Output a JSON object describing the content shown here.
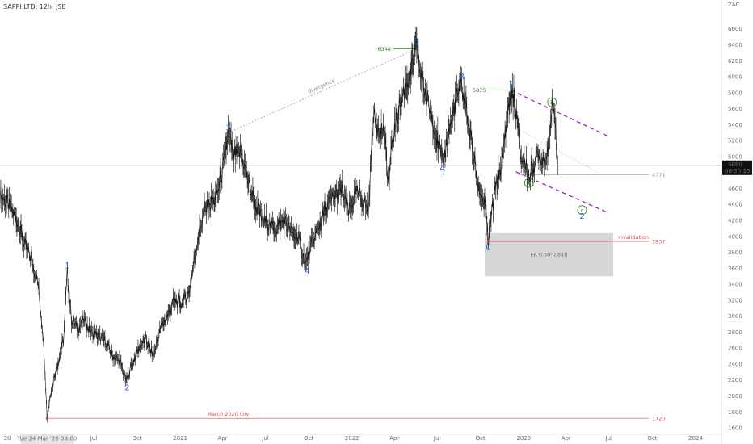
{
  "header": {
    "title": "SAPPI LTD, 12h, JSE"
  },
  "chart_data": {
    "type": "line",
    "symbol": "SAPPI LTD",
    "interval": "12h",
    "exchange": "JSE",
    "currency": "ZAC",
    "ylim": [
      1560,
      6820
    ],
    "yticks": [
      1600,
      1800,
      2000,
      2200,
      2400,
      2600,
      2800,
      3000,
      3200,
      3400,
      3600,
      3800,
      4000,
      4200,
      4400,
      4600,
      4800,
      5000,
      5200,
      5400,
      5600,
      5800,
      6000,
      6200,
      6400,
      6600
    ],
    "x_start": "2019-12-15",
    "x_end": "2024-02-25",
    "xticks": [
      {
        "label": "20",
        "date": "2019-12-31"
      },
      {
        "label": "Jul",
        "date": "2020-07-01"
      },
      {
        "label": "Oct",
        "date": "2020-10-01"
      },
      {
        "label": "2021",
        "date": "2021-01-01"
      },
      {
        "label": "Apr",
        "date": "2021-04-01"
      },
      {
        "label": "Jul",
        "date": "2021-07-01"
      },
      {
        "label": "Oct",
        "date": "2021-10-01"
      },
      {
        "label": "2022",
        "date": "2022-01-01"
      },
      {
        "label": "Apr",
        "date": "2022-04-01"
      },
      {
        "label": "Jul",
        "date": "2022-07-01"
      },
      {
        "label": "Oct",
        "date": "2022-10-01"
      },
      {
        "label": "2023",
        "date": "2023-01-01"
      },
      {
        "label": "Apr",
        "date": "2023-04-01"
      },
      {
        "label": "Jul",
        "date": "2023-07-01"
      },
      {
        "label": "Oct",
        "date": "2023-10-01"
      },
      {
        "label": "2024",
        "date": "2024-01-01"
      }
    ],
    "cursor_date_label": "Tue 24 Mar '20   09:00",
    "cursor_date": "2020-03-24",
    "last_price": {
      "value": 4890,
      "label": "4890",
      "countdown": "06:50:15"
    },
    "series": [
      {
        "values": [
          [
            "2019-12-15",
            4530
          ],
          [
            "2020-01-01",
            4400
          ],
          [
            "2020-01-20",
            4200
          ],
          [
            "2020-02-05",
            3900
          ],
          [
            "2020-02-20",
            3700
          ],
          [
            "2020-03-05",
            3400
          ],
          [
            "2020-03-15",
            2800
          ],
          [
            "2020-03-20",
            2300
          ],
          [
            "2020-03-24",
            1720
          ],
          [
            "2020-04-02",
            2100
          ],
          [
            "2020-04-15",
            2400
          ],
          [
            "2020-04-28",
            2700
          ],
          [
            "2020-05-06",
            3550
          ],
          [
            "2020-05-15",
            2950
          ],
          [
            "2020-05-28",
            2850
          ],
          [
            "2020-06-10",
            2950
          ],
          [
            "2020-06-25",
            2800
          ],
          [
            "2020-07-10",
            2750
          ],
          [
            "2020-07-25",
            2700
          ],
          [
            "2020-08-10",
            2500
          ],
          [
            "2020-08-25",
            2450
          ],
          [
            "2020-09-08",
            2180
          ],
          [
            "2020-09-20",
            2400
          ],
          [
            "2020-10-05",
            2600
          ],
          [
            "2020-10-20",
            2700
          ],
          [
            "2020-11-05",
            2500
          ],
          [
            "2020-11-20",
            2850
          ],
          [
            "2020-12-05",
            3000
          ],
          [
            "2020-12-20",
            3200
          ],
          [
            "2021-01-05",
            3150
          ],
          [
            "2021-01-20",
            3300
          ],
          [
            "2021-02-05",
            3900
          ],
          [
            "2021-02-20",
            4300
          ],
          [
            "2021-03-05",
            4400
          ],
          [
            "2021-03-20",
            4500
          ],
          [
            "2021-04-03",
            4900
          ],
          [
            "2021-04-13",
            5280
          ],
          [
            "2021-04-25",
            5000
          ],
          [
            "2021-05-10",
            5050
          ],
          [
            "2021-05-25",
            4700
          ],
          [
            "2021-06-10",
            4400
          ],
          [
            "2021-06-25",
            4200
          ],
          [
            "2021-07-10",
            4150
          ],
          [
            "2021-07-25",
            4100
          ],
          [
            "2021-08-10",
            4200
          ],
          [
            "2021-08-25",
            4050
          ],
          [
            "2021-09-10",
            3950
          ],
          [
            "2021-09-25",
            3650
          ],
          [
            "2021-10-10",
            3950
          ],
          [
            "2021-10-25",
            4150
          ],
          [
            "2021-11-10",
            4400
          ],
          [
            "2021-11-25",
            4500
          ],
          [
            "2021-12-10",
            4600
          ],
          [
            "2021-12-25",
            4300
          ],
          [
            "2022-01-10",
            4550
          ],
          [
            "2022-01-25",
            4450
          ],
          [
            "2022-02-05",
            4300
          ],
          [
            "2022-02-15",
            5500
          ],
          [
            "2022-02-25",
            5400
          ],
          [
            "2022-03-10",
            5300
          ],
          [
            "2022-03-20",
            4650
          ],
          [
            "2022-03-28",
            5200
          ],
          [
            "2022-04-10",
            5600
          ],
          [
            "2022-04-25",
            5900
          ],
          [
            "2022-05-10",
            6100
          ],
          [
            "2022-05-17",
            6348
          ],
          [
            "2022-05-25",
            6050
          ],
          [
            "2022-06-10",
            5700
          ],
          [
            "2022-06-25",
            5400
          ],
          [
            "2022-07-05",
            5100
          ],
          [
            "2022-07-12",
            4900
          ],
          [
            "2022-07-25",
            5300
          ],
          [
            "2022-08-10",
            5700
          ],
          [
            "2022-08-22",
            5900
          ],
          [
            "2022-09-05",
            5450
          ],
          [
            "2022-09-15",
            5050
          ],
          [
            "2022-09-28",
            4600
          ],
          [
            "2022-10-10",
            4400
          ],
          [
            "2022-10-18",
            3937
          ],
          [
            "2022-10-25",
            4300
          ],
          [
            "2022-11-05",
            4700
          ],
          [
            "2022-11-15",
            4900
          ],
          [
            "2022-11-25",
            5400
          ],
          [
            "2022-12-05",
            5835
          ],
          [
            "2022-12-15",
            5600
          ],
          [
            "2022-12-25",
            5000
          ],
          [
            "2023-01-05",
            4900
          ],
          [
            "2023-01-12",
            4720
          ],
          [
            "2023-01-25",
            4950
          ],
          [
            "2023-02-05",
            5000
          ],
          [
            "2023-02-18",
            4950
          ],
          [
            "2023-03-02",
            5620
          ],
          [
            "2023-03-10",
            5300
          ],
          [
            "2023-03-14",
            4890
          ]
        ]
      }
    ],
    "waves": [
      {
        "label": "1",
        "date": "2020-05-06",
        "price": 3600,
        "color": "#1f5fd1"
      },
      {
        "label": "2",
        "date": "2020-09-10",
        "price": 2070,
        "color": "#1f5fd1"
      },
      {
        "label": "3",
        "date": "2021-04-13",
        "price": 5330,
        "color": "#1f5fd1"
      },
      {
        "label": "4",
        "date": "2021-09-28",
        "price": 3530,
        "color": "#1f5fd1"
      },
      {
        "label": "5",
        "date": "2022-05-17",
        "price": 6410,
        "color": "#1f5fd1"
      },
      {
        "label": "A",
        "date": "2022-07-12",
        "price": 4820,
        "color": "#1f5fd1"
      },
      {
        "label": "B",
        "date": "2022-08-22",
        "price": 5970,
        "color": "#1f5fd1"
      },
      {
        "label": "C",
        "date": "2022-10-18",
        "price": 3830,
        "color": "#1f5fd1"
      },
      {
        "label": "1",
        "date": "2022-12-05",
        "price": 5880,
        "color": "#1f5fd1"
      },
      {
        "label": "2",
        "date": "2023-05-05",
        "price": 4220,
        "color": "#1f5fd1"
      }
    ],
    "circled_waves": [
      {
        "label": "a",
        "date": "2023-01-12",
        "price": 4670
      },
      {
        "label": "b",
        "date": "2023-03-02",
        "price": 5680
      },
      {
        "label": "c",
        "date": "2023-05-05",
        "price": 4330
      }
    ],
    "annotations": {
      "divergence_label": "divergence",
      "divergence_line": {
        "from": [
          "2021-04-13",
          5300
        ],
        "to": [
          "2022-05-17",
          6348
        ],
        "color": "#9a9a9a"
      },
      "wave3_price": {
        "label": "6348",
        "date": "2022-05-17",
        "value": 6348,
        "color": "#2e8b2e"
      },
      "wave1_price": {
        "label": "5835",
        "date": "2022-12-05",
        "value": 5835,
        "color": "#2e8b2e"
      },
      "level_4771": {
        "label": "4771",
        "value": 4771,
        "from_date": "2022-12-20",
        "color": "#9a9a9a"
      },
      "invalidation": {
        "label": "invalidation",
        "value_label": "3937",
        "value": 3937,
        "from_date": "2022-10-18",
        "color": "#e04545"
      },
      "march_low": {
        "label": "March 2020 low",
        "value_label": "1720",
        "value": 1720,
        "from_date": "2020-03-24",
        "color": "#e04545"
      },
      "fib_zone": {
        "label": "FR 0.50-0.618",
        "from_date": "2022-10-10",
        "to_date": "2023-07-10",
        "top": 4040,
        "bottom": 3500,
        "color": "#cfd0d3"
      },
      "channel_upper": {
        "from": [
          "2022-12-05",
          5830
        ],
        "to": [
          "2023-07-01",
          5250
        ],
        "color": "#a020c8"
      },
      "channel_lower": {
        "from": [
          "2022-12-15",
          4810
        ],
        "to": [
          "2023-07-01",
          4290
        ],
        "color": "#a020c8"
      },
      "dotted_guide": {
        "from": [
          "2022-12-25",
          5330
        ],
        "to": [
          "2023-06-10",
          4790
        ],
        "color": "#8fd1c0"
      }
    }
  }
}
